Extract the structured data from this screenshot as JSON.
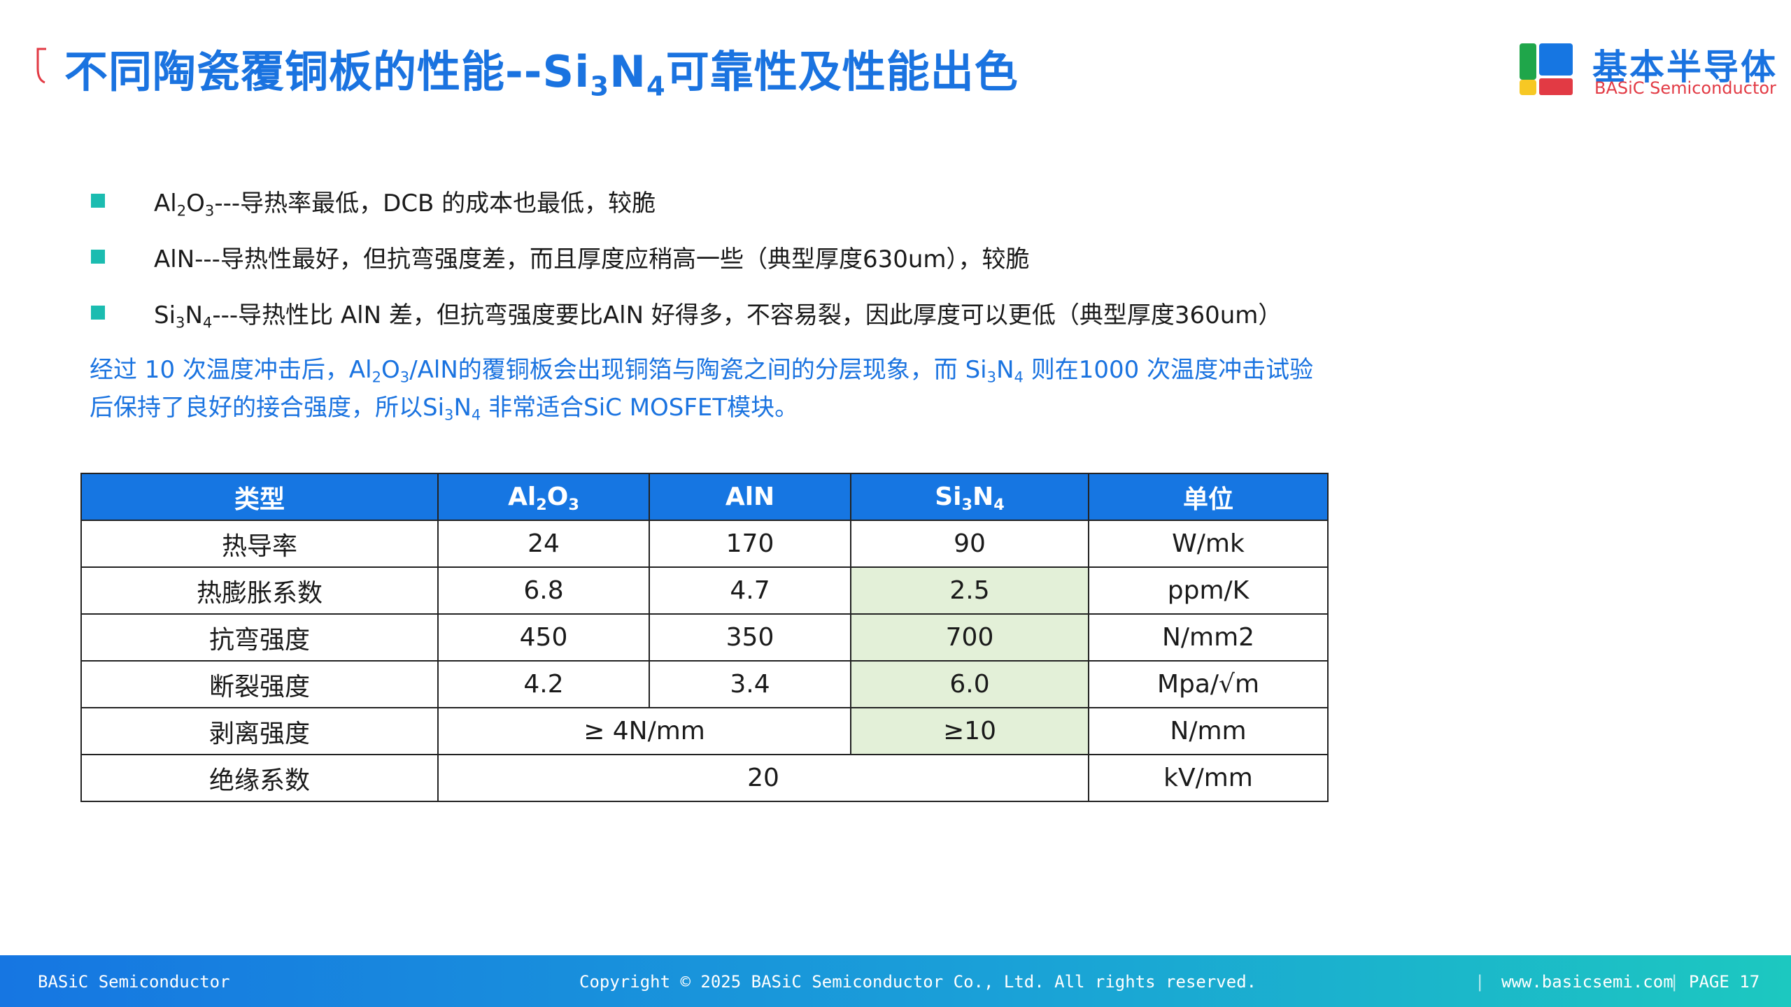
{
  "header": {
    "title_prefix": "不同陶瓷覆铜板的性能--Si",
    "title_sub1": "3",
    "title_mid": "N",
    "title_sub2": "4",
    "title_suffix": "可靠性及性能出色",
    "logo_cn": "基本半导体",
    "logo_en": "BASiC Semiconductor"
  },
  "bullets": [
    {
      "p1": "Al",
      "s1": "2",
      "p2": "O",
      "s2": "3",
      "p3": "---导热率最低，DCB 的成本也最低，较脆"
    },
    {
      "text": "AlN---导热性最好，但抗弯强度差，而且厚度应稍高一些（典型厚度630um），较脆"
    },
    {
      "p1": "Si",
      "s1": "3",
      "p2": "N",
      "s2": "4",
      "p3": "---导热性比 AlN 差，但抗弯强度要比AlN 好得多，不容易裂，因此厚度可以更低（典型厚度360um）"
    }
  ],
  "note": {
    "l1_a": "经过 10 次温度冲击后，Al",
    "l1_s1": "2",
    "l1_b": "O",
    "l1_s2": "3",
    "l1_c": "/AlN的覆铜板会出现铜箔与陶瓷之间的分层现象，而 Si",
    "l1_s3": "3",
    "l1_d": "N",
    "l1_s4": "4",
    "l1_e": " 则在1000 次温度冲击试验",
    "l2_a": "后保持了良好的接合强度，所以Si",
    "l2_s1": "3",
    "l2_b": "N",
    "l2_s2": "4",
    "l2_c": " 非常适合SiC MOSFET模块。"
  },
  "table": {
    "headers": {
      "type": "类型",
      "al2o3_a": "Al",
      "al2o3_s1": "2",
      "al2o3_b": "O",
      "al2o3_s2": "3",
      "aln": "AlN",
      "si3n4_a": "Si",
      "si3n4_s1": "3",
      "si3n4_b": "N",
      "si3n4_s2": "4",
      "unit": "单位"
    },
    "rows": [
      {
        "name": "热导率",
        "al2o3": "24",
        "aln": "170",
        "si3n4": "90",
        "unit": "W/mk"
      },
      {
        "name": "热膨胀系数",
        "al2o3": "6.8",
        "aln": "4.7",
        "si3n4": "2.5",
        "unit": "ppm/K"
      },
      {
        "name": "抗弯强度",
        "al2o3": "450",
        "aln": "350",
        "si3n4": "700",
        "unit": "N/mm2"
      },
      {
        "name": "断裂强度",
        "al2o3": "4.2",
        "aln": "3.4",
        "si3n4": "6.0",
        "unit": "Mpa/√m"
      },
      {
        "name": "剥离强度",
        "al2o3_aln": "≥ 4N/mm",
        "si3n4": "≥10",
        "unit": "N/mm"
      },
      {
        "name": "绝缘系数",
        "all": "20",
        "unit": "kV/mm"
      }
    ],
    "highlight_color": "#e3f0d8",
    "header_color": "#1676e2"
  },
  "footer": {
    "left": "BASiC Semiconductor",
    "copyright": "Copyright © 2025 BASiC Semiconductor Co., Ltd. All rights reserved.",
    "sep": "|",
    "website": "www.basicsemi.com",
    "page": "PAGE 17"
  },
  "colors": {
    "title": "#1a73e0",
    "bullet": "#1bbcb0",
    "note": "#1a73e0",
    "logo_red": "#e23a44"
  }
}
